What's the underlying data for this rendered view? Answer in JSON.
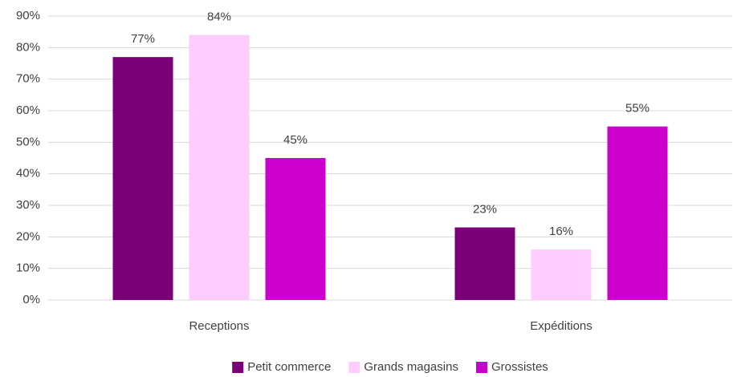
{
  "chart_data": {
    "type": "bar",
    "categories": [
      "Receptions",
      "Expéditions"
    ],
    "series": [
      {
        "name": "Petit commerce",
        "color": "#7b0078",
        "values": [
          77,
          23
        ],
        "value_labels": [
          "77%",
          "23%"
        ]
      },
      {
        "name": "Grands magasins",
        "color": "#ffccff",
        "values": [
          84,
          16
        ],
        "value_labels": [
          "84%",
          "16%"
        ]
      },
      {
        "name": "Grossistes",
        "color": "#cc00cc",
        "values": [
          45,
          55
        ],
        "value_labels": [
          "45%",
          "55%"
        ]
      }
    ],
    "ylim": [
      0,
      90
    ],
    "yticks": [
      {
        "value": 0,
        "label": "0%"
      },
      {
        "value": 10,
        "label": "10%"
      },
      {
        "value": 20,
        "label": "20%"
      },
      {
        "value": 30,
        "label": "30%"
      },
      {
        "value": 40,
        "label": "40%"
      },
      {
        "value": 50,
        "label": "50%"
      },
      {
        "value": 60,
        "label": "60%"
      },
      {
        "value": 70,
        "label": "70%"
      },
      {
        "value": 80,
        "label": "80%"
      },
      {
        "value": 90,
        "label": "90%"
      }
    ],
    "grid": true,
    "legend": "bottom"
  }
}
